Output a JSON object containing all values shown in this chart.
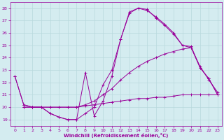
{
  "xlabel": "Windchill (Refroidissement éolien,°C)",
  "ylabel": "",
  "xlim": [
    -0.5,
    23.5
  ],
  "ylim": [
    18.5,
    28.5
  ],
  "xticks": [
    0,
    1,
    2,
    3,
    4,
    5,
    6,
    7,
    8,
    9,
    10,
    11,
    12,
    13,
    14,
    15,
    16,
    17,
    18,
    19,
    20,
    21,
    22,
    23
  ],
  "yticks": [
    19,
    20,
    21,
    22,
    23,
    24,
    25,
    26,
    27,
    28
  ],
  "bg_color": "#d4ecf0",
  "line_color": "#990099",
  "grid_color": "#b8d8dc",
  "lines": [
    {
      "x": [
        0,
        1,
        2,
        3,
        4,
        5,
        6,
        7,
        8,
        9,
        10,
        11,
        12,
        13,
        14,
        15,
        16,
        17,
        18,
        19,
        20,
        21,
        22,
        23
      ],
      "y": [
        22.5,
        20.2,
        20.0,
        20.0,
        19.5,
        19.2,
        19.0,
        19.0,
        19.5,
        20.0,
        21.8,
        23.0,
        25.5,
        27.6,
        28.0,
        27.8,
        27.3,
        26.7,
        26.0,
        25.0,
        24.8,
        23.2,
        22.3,
        21.0
      ]
    },
    {
      "x": [
        1,
        2,
        3,
        4,
        5,
        6,
        7,
        8,
        9,
        10,
        11,
        12,
        13,
        14,
        15,
        16,
        17,
        18,
        19,
        20,
        21,
        22,
        23
      ],
      "y": [
        20.0,
        20.0,
        20.0,
        20.0,
        20.0,
        20.0,
        20.0,
        20.2,
        20.5,
        21.0,
        21.5,
        22.2,
        22.8,
        23.3,
        23.7,
        24.0,
        24.3,
        24.5,
        24.7,
        24.8,
        23.3,
        22.2,
        21.2
      ]
    },
    {
      "x": [
        1,
        2,
        3,
        4,
        5,
        6,
        7,
        8,
        9,
        10,
        11,
        12,
        13,
        14,
        15,
        16,
        17,
        18,
        19,
        20,
        21,
        22,
        23
      ],
      "y": [
        20.0,
        20.0,
        20.0,
        20.0,
        20.0,
        20.0,
        20.0,
        20.1,
        20.2,
        20.3,
        20.4,
        20.5,
        20.6,
        20.7,
        20.7,
        20.8,
        20.8,
        20.9,
        21.0,
        21.0,
        21.0,
        21.0,
        21.0
      ]
    },
    {
      "x": [
        0,
        1,
        2,
        3,
        4,
        5,
        6,
        7,
        8,
        9,
        10,
        11,
        12,
        13,
        14,
        15,
        16,
        17,
        18,
        19,
        20,
        21,
        22,
        23
      ],
      "y": [
        22.5,
        20.2,
        20.0,
        20.0,
        19.5,
        19.2,
        19.0,
        19.0,
        22.8,
        19.3,
        20.5,
        22.5,
        25.5,
        27.7,
        28.0,
        27.9,
        27.2,
        26.6,
        25.9,
        25.0,
        24.9,
        23.2,
        22.3,
        21.0
      ]
    }
  ]
}
